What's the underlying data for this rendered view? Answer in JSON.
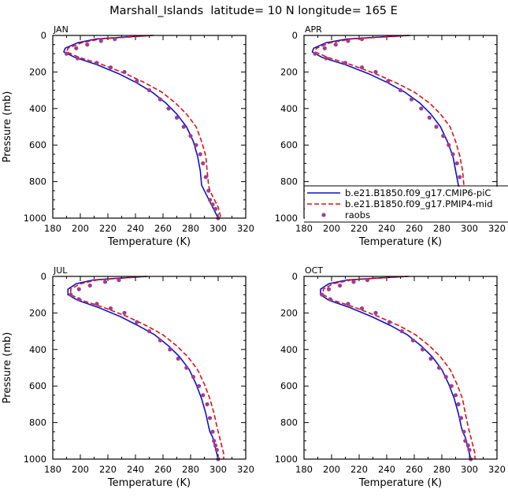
{
  "title": "Marshall_Islands  latitude= 10 N longitude= 165 E",
  "colors": {
    "model1": "#1010c8",
    "model2": "#e01010",
    "obs": "#9b3f8f"
  },
  "legend": {
    "placement": "lower-right of APR panel",
    "entries": [
      {
        "label": "b.e21.B1850.f09_g17.CMIP6-piC",
        "style": "solid",
        "color": "#1010c8"
      },
      {
        "label": "b.e21.B1850.f09_g17.PMIP4-mid",
        "style": "dashed",
        "color": "#e01010"
      },
      {
        "label": "raobs",
        "style": "dots",
        "color": "#9b3f8f"
      }
    ]
  },
  "chart_data": [
    {
      "type": "line",
      "panel_label": "JAN",
      "xlabel": "Temperature (K)",
      "ylabel": "Pressure (mb)",
      "xlim": [
        180,
        320
      ],
      "ylim": [
        1000,
        0
      ],
      "xticks": [
        180,
        200,
        220,
        240,
        260,
        280,
        300,
        320
      ],
      "yticks": [
        0,
        200,
        400,
        600,
        800,
        1000
      ],
      "series": [
        {
          "name": "b.e21.B1850.f09_g17.CMIP6-piC",
          "style": "solid",
          "x": [
            252,
            230,
            211,
            198,
            189,
            188,
            196,
            212,
            228,
            241,
            252,
            262,
            270,
            277,
            282,
            285,
            287,
            288,
            290,
            292,
            294,
            296,
            298,
            300
          ],
          "y": [
            0,
            10,
            20,
            40,
            70,
            90,
            120,
            160,
            210,
            260,
            310,
            370,
            430,
            500,
            580,
            660,
            740,
            820,
            850,
            880,
            910,
            940,
            970,
            1000
          ]
        },
        {
          "name": "b.e21.B1850.f09_g17.PMIP4-mid",
          "style": "dashed",
          "x": [
            253,
            233,
            214,
            201,
            191,
            190,
            199,
            216,
            233,
            247,
            259,
            269,
            277,
            284,
            288,
            291,
            292,
            293,
            294,
            296,
            298,
            300,
            301,
            302
          ],
          "y": [
            0,
            10,
            20,
            40,
            70,
            90,
            120,
            160,
            210,
            260,
            310,
            370,
            430,
            500,
            580,
            660,
            740,
            820,
            850,
            880,
            910,
            940,
            970,
            1000
          ]
        },
        {
          "name": "raobs",
          "style": "dots",
          "x": [
            225,
            215,
            205,
            197,
            190,
            198,
            212,
            222,
            232,
            241,
            250,
            258,
            264,
            270,
            275,
            280,
            284,
            287,
            289,
            291,
            293,
            294,
            296,
            298,
            300
          ],
          "y": [
            20,
            30,
            50,
            70,
            100,
            125,
            150,
            175,
            200,
            250,
            300,
            350,
            400,
            450,
            500,
            550,
            600,
            650,
            700,
            775,
            850,
            900,
            925,
            950,
            1000
          ]
        }
      ]
    },
    {
      "type": "line",
      "panel_label": "APR",
      "xlabel": "Temperature (K)",
      "ylabel": "",
      "xlim": [
        180,
        320
      ],
      "ylim": [
        1000,
        0
      ],
      "xticks": [
        180,
        200,
        220,
        240,
        260,
        280,
        300,
        320
      ],
      "yticks": [
        0,
        200,
        400,
        600,
        800,
        1000
      ],
      "series": [
        {
          "name": "b.e21.B1850.f09_g17.CMIP6-piC",
          "style": "solid",
          "x": [
            256,
            232,
            211,
            196,
            187,
            186,
            193,
            210,
            227,
            241,
            253,
            264,
            272,
            279,
            284,
            288,
            290,
            292,
            294,
            296,
            298,
            300,
            301,
            302
          ],
          "y": [
            0,
            10,
            20,
            40,
            70,
            90,
            120,
            160,
            210,
            260,
            310,
            370,
            430,
            500,
            580,
            660,
            740,
            820,
            850,
            880,
            910,
            940,
            970,
            1000
          ]
        },
        {
          "name": "b.e21.B1850.f09_g17.PMIP4-mid",
          "style": "dashed",
          "x": [
            257,
            235,
            214,
            199,
            189,
            188,
            197,
            214,
            232,
            247,
            260,
            271,
            279,
            286,
            290,
            293,
            295,
            296,
            297,
            299,
            300,
            302,
            303,
            304
          ],
          "y": [
            0,
            10,
            20,
            40,
            70,
            90,
            120,
            160,
            210,
            260,
            310,
            370,
            430,
            500,
            580,
            660,
            740,
            820,
            850,
            880,
            910,
            940,
            970,
            1000
          ]
        },
        {
          "name": "raobs",
          "style": "dots",
          "x": [
            222,
            212,
            203,
            195,
            188,
            196,
            210,
            222,
            232,
            241,
            250,
            258,
            265,
            271,
            276,
            281,
            285,
            288,
            291,
            293,
            295,
            296,
            298,
            300,
            302
          ],
          "y": [
            20,
            30,
            50,
            70,
            100,
            125,
            150,
            175,
            200,
            250,
            300,
            350,
            400,
            450,
            500,
            550,
            600,
            650,
            700,
            775,
            850,
            900,
            925,
            950,
            1000
          ]
        }
      ]
    },
    {
      "type": "line",
      "panel_label": "JUL",
      "xlabel": "Temperature (K)",
      "ylabel": "Pressure (mb)",
      "xlim": [
        180,
        320
      ],
      "ylim": [
        1000,
        0
      ],
      "xticks": [
        180,
        200,
        220,
        240,
        260,
        280,
        300,
        320
      ],
      "yticks": [
        0,
        200,
        400,
        600,
        800,
        1000
      ],
      "series": [
        {
          "name": "b.e21.B1850.f09_g17.CMIP6-piC",
          "style": "solid",
          "x": [
            248,
            227,
            209,
            197,
            191,
            191,
            198,
            213,
            229,
            242,
            254,
            264,
            272,
            279,
            284,
            288,
            291,
            293,
            294,
            296,
            297,
            298,
            299,
            300
          ],
          "y": [
            0,
            10,
            20,
            40,
            70,
            100,
            130,
            170,
            220,
            270,
            320,
            380,
            440,
            510,
            590,
            670,
            750,
            820,
            850,
            880,
            910,
            940,
            970,
            1000
          ]
        },
        {
          "name": "b.e21.B1850.f09_g17.PMIP4-mid",
          "style": "dashed",
          "x": [
            249,
            229,
            212,
            200,
            193,
            193,
            201,
            217,
            234,
            248,
            260,
            270,
            278,
            285,
            290,
            294,
            297,
            299,
            300,
            301,
            302,
            303,
            304,
            304
          ],
          "y": [
            0,
            10,
            20,
            40,
            70,
            100,
            130,
            170,
            220,
            270,
            320,
            380,
            440,
            510,
            590,
            670,
            750,
            820,
            850,
            880,
            910,
            940,
            970,
            1000
          ]
        },
        {
          "name": "raobs",
          "style": "dots",
          "x": [
            228,
            218,
            207,
            199,
            193,
            199,
            212,
            222,
            232,
            241,
            250,
            258,
            265,
            271,
            277,
            282,
            286,
            289,
            292,
            294,
            296,
            297,
            298,
            299,
            300
          ],
          "y": [
            20,
            30,
            50,
            70,
            100,
            125,
            150,
            175,
            200,
            250,
            300,
            350,
            400,
            450,
            500,
            550,
            600,
            650,
            700,
            775,
            850,
            900,
            925,
            950,
            1000
          ]
        }
      ]
    },
    {
      "type": "line",
      "panel_label": "OCT",
      "xlabel": "Temperature (K)",
      "ylabel": "",
      "xlim": [
        180,
        320
      ],
      "ylim": [
        1000,
        0
      ],
      "xticks": [
        180,
        200,
        220,
        240,
        260,
        280,
        300,
        320
      ],
      "yticks": [
        0,
        200,
        400,
        600,
        800,
        1000
      ],
      "series": [
        {
          "name": "b.e21.B1850.f09_g17.CMIP6-piC",
          "style": "solid",
          "x": [
            255,
            231,
            211,
            198,
            192,
            192,
            198,
            213,
            229,
            243,
            255,
            265,
            273,
            280,
            285,
            289,
            292,
            294,
            295,
            297,
            298,
            299,
            300,
            301
          ],
          "y": [
            0,
            10,
            20,
            40,
            70,
            100,
            130,
            170,
            220,
            270,
            320,
            380,
            440,
            510,
            590,
            670,
            750,
            820,
            850,
            880,
            910,
            940,
            970,
            1000
          ]
        },
        {
          "name": "b.e21.B1850.f09_g17.PMIP4-mid",
          "style": "dashed",
          "x": [
            256,
            233,
            214,
            201,
            194,
            194,
            201,
            217,
            234,
            249,
            261,
            271,
            279,
            286,
            291,
            295,
            297,
            299,
            300,
            301,
            302,
            303,
            304,
            304
          ],
          "y": [
            0,
            10,
            20,
            40,
            70,
            100,
            130,
            170,
            220,
            270,
            320,
            380,
            440,
            510,
            590,
            670,
            750,
            820,
            850,
            880,
            910,
            940,
            970,
            1000
          ]
        },
        {
          "name": "raobs",
          "style": "dots",
          "x": [
            226,
            216,
            206,
            198,
            193,
            199,
            212,
            222,
            232,
            242,
            251,
            259,
            266,
            272,
            278,
            283,
            287,
            290,
            292,
            294,
            296,
            297,
            299,
            300,
            301
          ],
          "y": [
            20,
            30,
            50,
            70,
            100,
            125,
            150,
            175,
            200,
            250,
            300,
            350,
            400,
            450,
            500,
            550,
            600,
            650,
            700,
            775,
            850,
            900,
            925,
            950,
            1000
          ]
        }
      ]
    }
  ]
}
